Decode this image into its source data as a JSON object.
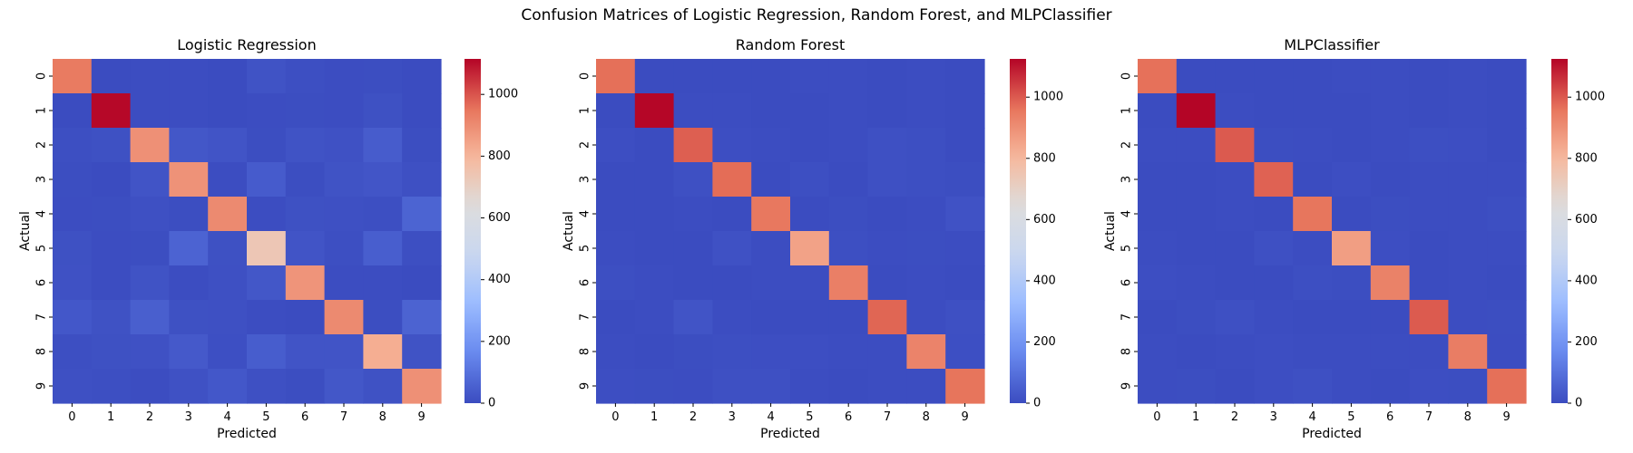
{
  "figure": {
    "suptitle": "Confusion Matrices of Logistic Regression, Random Forest, and MLPClassifier"
  },
  "colormap": {
    "name": "coolwarm",
    "stops": [
      "#3b4cc0",
      "#6788ee",
      "#9abbff",
      "#c9d7f0",
      "#dddddd",
      "#f7b89c",
      "#e7745b",
      "#b40426"
    ]
  },
  "chart_data": [
    {
      "type": "heatmap",
      "title": "Logistic Regression",
      "xlabel": "Predicted",
      "ylabel": "Actual",
      "x_categories": [
        "0",
        "1",
        "2",
        "3",
        "4",
        "5",
        "6",
        "7",
        "8",
        "9"
      ],
      "y_categories": [
        "0",
        "1",
        "2",
        "3",
        "4",
        "5",
        "6",
        "7",
        "8",
        "9"
      ],
      "vmin": 0,
      "vmax": 1115,
      "colorbar_ticks": [
        0,
        200,
        400,
        600,
        800,
        1000
      ],
      "matrix": [
        [
          940,
          0,
          3,
          2,
          1,
          18,
          8,
          3,
          4,
          1
        ],
        [
          0,
          1110,
          3,
          2,
          0,
          2,
          4,
          2,
          12,
          0
        ],
        [
          8,
          12,
          890,
          28,
          20,
          5,
          18,
          14,
          42,
          5
        ],
        [
          4,
          1,
          20,
          885,
          2,
          40,
          5,
          18,
          25,
          10
        ],
        [
          2,
          5,
          10,
          5,
          905,
          2,
          12,
          10,
          8,
          63
        ],
        [
          12,
          3,
          4,
          62,
          12,
          735,
          20,
          8,
          48,
          8
        ],
        [
          14,
          3,
          18,
          2,
          10,
          28,
          880,
          3,
          3,
          0
        ],
        [
          30,
          15,
          50,
          12,
          10,
          2,
          0,
          905,
          4,
          60
        ],
        [
          8,
          12,
          14,
          35,
          9,
          45,
          20,
          20,
          820,
          18
        ],
        [
          10,
          7,
          2,
          13,
          30,
          10,
          5,
          28,
          15,
          889
        ]
      ]
    },
    {
      "type": "heatmap",
      "title": "Random Forest",
      "xlabel": "Predicted",
      "ylabel": "Actual",
      "x_categories": [
        "0",
        "1",
        "2",
        "3",
        "4",
        "5",
        "6",
        "7",
        "8",
        "9"
      ],
      "y_categories": [
        "0",
        "1",
        "2",
        "3",
        "4",
        "5",
        "6",
        "7",
        "8",
        "9"
      ],
      "vmin": 0,
      "vmax": 1125,
      "colorbar_ticks": [
        0,
        200,
        400,
        600,
        800,
        1000
      ],
      "matrix": [
        [
          970,
          0,
          1,
          0,
          0,
          2,
          3,
          1,
          2,
          1
        ],
        [
          0,
          1122,
          3,
          3,
          0,
          1,
          3,
          0,
          2,
          1
        ],
        [
          6,
          0,
          995,
          6,
          3,
          0,
          4,
          10,
          8,
          0
        ],
        [
          0,
          0,
          12,
          975,
          0,
          8,
          0,
          10,
          7,
          5
        ],
        [
          1,
          0,
          2,
          0,
          955,
          0,
          5,
          0,
          2,
          17
        ],
        [
          3,
          0,
          0,
          14,
          3,
          855,
          7,
          2,
          5,
          3
        ],
        [
          7,
          3,
          0,
          0,
          3,
          4,
          938,
          0,
          3,
          0
        ],
        [
          1,
          4,
          22,
          2,
          0,
          0,
          0,
          985,
          3,
          11
        ],
        [
          4,
          0,
          5,
          8,
          6,
          6,
          4,
          4,
          928,
          9
        ],
        [
          6,
          5,
          2,
          10,
          12,
          2,
          1,
          4,
          4,
          963
        ]
      ]
    },
    {
      "type": "heatmap",
      "title": "MLPClassifier",
      "xlabel": "Predicted",
      "ylabel": "Actual",
      "x_categories": [
        "0",
        "1",
        "2",
        "3",
        "4",
        "5",
        "6",
        "7",
        "8",
        "9"
      ],
      "y_categories": [
        "0",
        "1",
        "2",
        "3",
        "4",
        "5",
        "6",
        "7",
        "8",
        "9"
      ],
      "vmin": 0,
      "vmax": 1125,
      "colorbar_ticks": [
        0,
        200,
        400,
        600,
        800,
        1000
      ],
      "matrix": [
        [
          968,
          0,
          1,
          1,
          1,
          2,
          3,
          1,
          2,
          1
        ],
        [
          0,
          1124,
          3,
          1,
          0,
          1,
          2,
          1,
          3,
          0
        ],
        [
          4,
          2,
          1002,
          5,
          2,
          0,
          3,
          8,
          6,
          0
        ],
        [
          0,
          0,
          4,
          990,
          0,
          6,
          0,
          4,
          4,
          2
        ],
        [
          1,
          0,
          3,
          1,
          960,
          0,
          5,
          2,
          2,
          8
        ],
        [
          2,
          0,
          0,
          10,
          2,
          865,
          6,
          1,
          4,
          2
        ],
        [
          6,
          3,
          1,
          1,
          8,
          5,
          932,
          0,
          2,
          0
        ],
        [
          1,
          5,
          10,
          3,
          1,
          0,
          0,
          1000,
          3,
          5
        ],
        [
          4,
          1,
          3,
          6,
          4,
          4,
          3,
          4,
          942,
          3
        ],
        [
          3,
          5,
          0,
          6,
          10,
          3,
          1,
          6,
          5,
          970
        ]
      ]
    }
  ]
}
